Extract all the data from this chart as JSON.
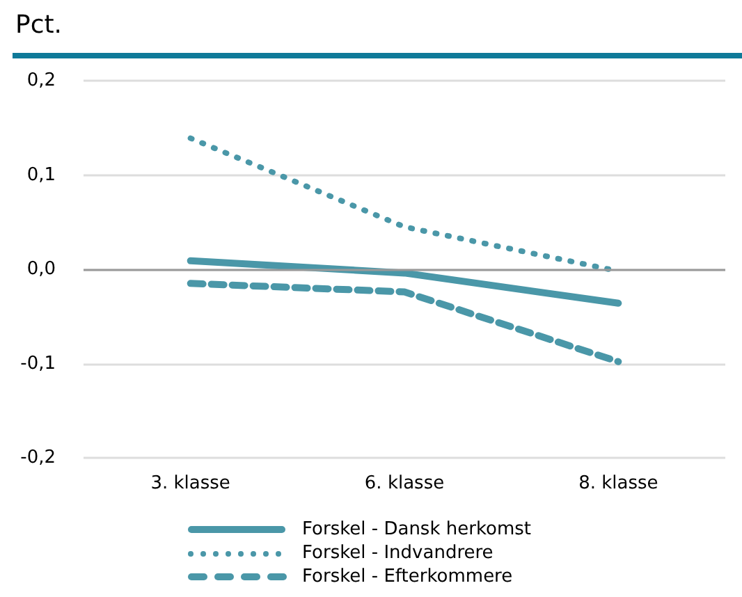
{
  "chart_data": {
    "type": "line",
    "ylabel": "Pct.",
    "categories": [
      "3. klasse",
      "6. klasse",
      "8. klasse"
    ],
    "series": [
      {
        "name": "Forskel - Dansk herkomst",
        "color": "#4a97a8",
        "line_style": "solid",
        "values": [
          0.009,
          -0.004,
          -0.036
        ]
      },
      {
        "name": "Forskel - Indvandrere",
        "color": "#4a97a8",
        "line_style": "dotted",
        "values": [
          0.139,
          0.045,
          -0.002
        ]
      },
      {
        "name": "Forskel - Efterkommere",
        "color": "#4a97a8",
        "line_style": "dashed",
        "values": [
          -0.015,
          -0.024,
          -0.098
        ]
      }
    ],
    "ylim": [
      -0.2,
      0.2
    ],
    "yticks": [
      {
        "value": -0.2,
        "label": "-0,2"
      },
      {
        "value": -0.1,
        "label": "-0,1"
      },
      {
        "value": 0,
        "label": "0,0"
      },
      {
        "value": 0.1,
        "label": "0,1"
      },
      {
        "value": 0.2,
        "label": "0,2"
      }
    ],
    "ref_lines": [
      {
        "axis": "y",
        "value": 0,
        "color": "#999999"
      }
    ],
    "grid": "y",
    "legend": "bottom",
    "marker": "none"
  }
}
